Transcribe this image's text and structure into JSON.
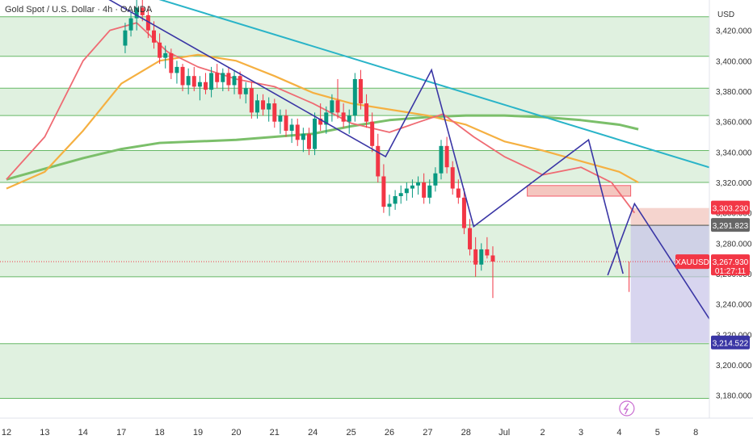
{
  "header": {
    "title": "Gold Spot / U.S. Dollar · 4h · OANDA",
    "currency": "USD"
  },
  "colors": {
    "bull": "#089981",
    "bear": "#f23645",
    "zone": "#d6ecd6",
    "zone_line": "#45a845",
    "trendline": "#2ab4c8",
    "zigzag": "#3a36a5",
    "ma_fast": "#ef6b73",
    "ma_mid": "#f5b041",
    "ma_slow": "#7bbf6a",
    "target_box": "#c7c3e8",
    "stop_box": "#f2c9c2"
  },
  "chart_data": {
    "type": "candlestick",
    "symbol": "XAUUSD",
    "ylim": [
      3165,
      3440
    ],
    "y_ticks": [
      3180,
      3200,
      3220,
      3240,
      3260,
      3280,
      3300,
      3320,
      3340,
      3360,
      3380,
      3400,
      3420
    ],
    "x_ticks": [
      "12",
      "13",
      "14",
      "17",
      "18",
      "19",
      "20",
      "21",
      "24",
      "25",
      "26",
      "27",
      "28",
      "Jul",
      "2",
      "3",
      "4",
      "5",
      "8"
    ],
    "price_tags": [
      {
        "label": "XAUUSD",
        "value": "3,267.930",
        "countdown": "01:27:11",
        "price": 3267.93,
        "color": "#f23645"
      },
      {
        "label": "",
        "value": "3,303.230",
        "price": 3303.23,
        "color": "#f23645"
      },
      {
        "label": "",
        "value": "3,291.823",
        "price": 3291.823,
        "color": "#666666"
      },
      {
        "label": "",
        "value": "3,214.522",
        "price": 3214.522,
        "color": "#3a36a5"
      }
    ],
    "zone_levels": [
      3429,
      3403,
      3382,
      3364,
      3341,
      3320,
      3292,
      3258,
      3214,
      3178
    ],
    "supply_box": {
      "from": 13.6,
      "to": 16.3,
      "high": 3318,
      "low": 3311
    },
    "projection": {
      "from": 16.3,
      "to": 18.8,
      "entry": 3291.8,
      "stop": 3303.2,
      "target": 3214.5,
      "path": [
        [
          15.7,
          3259
        ],
        [
          16.4,
          3306
        ],
        [
          18.8,
          3213
        ]
      ]
    },
    "trendline": [
      [
        3.4,
        3445
      ],
      [
        21.2,
        3308
      ]
    ],
    "zigzag": [
      [
        2.35,
        3445
      ],
      [
        9.9,
        3337
      ],
      [
        11.1,
        3394
      ],
      [
        12.2,
        3291
      ],
      [
        15.2,
        3348
      ],
      [
        16.1,
        3260
      ]
    ],
    "ma_fast": [
      [
        0,
        3322
      ],
      [
        1,
        3350
      ],
      [
        2,
        3400
      ],
      [
        2.7,
        3420
      ],
      [
        3.4,
        3425
      ],
      [
        4.2,
        3406
      ],
      [
        5,
        3396
      ],
      [
        6,
        3388
      ],
      [
        7,
        3383
      ],
      [
        8,
        3372
      ],
      [
        9,
        3359
      ],
      [
        10,
        3353
      ],
      [
        10.8,
        3360
      ],
      [
        11.4,
        3365
      ],
      [
        12.2,
        3350
      ],
      [
        13,
        3337
      ],
      [
        14,
        3325
      ],
      [
        15,
        3330
      ],
      [
        15.8,
        3320
      ],
      [
        16.4,
        3300
      ]
    ],
    "ma_mid": [
      [
        0,
        3316
      ],
      [
        1,
        3327
      ],
      [
        2,
        3354
      ],
      [
        3,
        3385
      ],
      [
        4,
        3400
      ],
      [
        5,
        3404
      ],
      [
        6,
        3400
      ],
      [
        7,
        3390
      ],
      [
        8,
        3379
      ],
      [
        9,
        3372
      ],
      [
        10,
        3368
      ],
      [
        11,
        3364
      ],
      [
        12,
        3358
      ],
      [
        13,
        3347
      ],
      [
        14,
        3341
      ],
      [
        15,
        3334
      ],
      [
        16,
        3327
      ],
      [
        16.5,
        3320
      ]
    ],
    "ma_slow": [
      [
        0,
        3322
      ],
      [
        1,
        3329
      ],
      [
        2,
        3336
      ],
      [
        3,
        3342
      ],
      [
        4,
        3346
      ],
      [
        5,
        3347
      ],
      [
        6,
        3348
      ],
      [
        7,
        3350
      ],
      [
        8,
        3352
      ],
      [
        9,
        3357
      ],
      [
        10,
        3361
      ],
      [
        11,
        3363
      ],
      [
        12,
        3364
      ],
      [
        13,
        3364
      ],
      [
        14,
        3363
      ],
      [
        15,
        3361
      ],
      [
        16,
        3358
      ],
      [
        16.5,
        3355
      ]
    ],
    "candles": [
      [
        3.1,
        3410,
        3425,
        3405,
        3420
      ],
      [
        3.25,
        3420,
        3432,
        3416,
        3428
      ],
      [
        3.4,
        3428,
        3440,
        3420,
        3435
      ],
      [
        3.55,
        3435,
        3442,
        3426,
        3430
      ],
      [
        3.7,
        3430,
        3436,
        3415,
        3420
      ],
      [
        3.85,
        3420,
        3426,
        3408,
        3412
      ],
      [
        4.0,
        3412,
        3418,
        3398,
        3402
      ],
      [
        4.15,
        3402,
        3410,
        3395,
        3405
      ],
      [
        4.3,
        3405,
        3408,
        3388,
        3392
      ],
      [
        4.45,
        3392,
        3400,
        3385,
        3396
      ],
      [
        4.6,
        3396,
        3398,
        3380,
        3384
      ],
      [
        4.75,
        3384,
        3395,
        3378,
        3390
      ],
      [
        4.9,
        3390,
        3396,
        3380,
        3383
      ],
      [
        5.05,
        3383,
        3390,
        3374,
        3386
      ],
      [
        5.2,
        3386,
        3392,
        3378,
        3381
      ],
      [
        5.35,
        3381,
        3396,
        3376,
        3392
      ],
      [
        5.5,
        3392,
        3398,
        3382,
        3386
      ],
      [
        5.65,
        3386,
        3395,
        3380,
        3392
      ],
      [
        5.8,
        3392,
        3396,
        3380,
        3384
      ],
      [
        5.95,
        3384,
        3394,
        3378,
        3390
      ],
      [
        6.1,
        3390,
        3393,
        3375,
        3378
      ],
      [
        6.25,
        3378,
        3386,
        3372,
        3382
      ],
      [
        6.4,
        3382,
        3386,
        3362,
        3366
      ],
      [
        6.55,
        3366,
        3378,
        3362,
        3374
      ],
      [
        6.7,
        3374,
        3378,
        3364,
        3368
      ],
      [
        6.85,
        3368,
        3376,
        3360,
        3372
      ],
      [
        7.0,
        3372,
        3375,
        3356,
        3360
      ],
      [
        7.15,
        3360,
        3368,
        3352,
        3364
      ],
      [
        7.3,
        3364,
        3368,
        3350,
        3354
      ],
      [
        7.45,
        3354,
        3362,
        3346,
        3358
      ],
      [
        7.6,
        3358,
        3362,
        3344,
        3348
      ],
      [
        7.75,
        3348,
        3356,
        3340,
        3352
      ],
      [
        7.9,
        3352,
        3356,
        3338,
        3342
      ],
      [
        8.05,
        3342,
        3366,
        3338,
        3362
      ],
      [
        8.2,
        3362,
        3372,
        3354,
        3358
      ],
      [
        8.35,
        3358,
        3370,
        3352,
        3366
      ],
      [
        8.5,
        3366,
        3378,
        3360,
        3374
      ],
      [
        8.65,
        3374,
        3388,
        3362,
        3366
      ],
      [
        8.8,
        3366,
        3372,
        3356,
        3360
      ],
      [
        8.95,
        3360,
        3368,
        3352,
        3364
      ],
      [
        9.1,
        3364,
        3392,
        3360,
        3388
      ],
      [
        9.25,
        3388,
        3394,
        3368,
        3372
      ],
      [
        9.4,
        3372,
        3378,
        3356,
        3360
      ],
      [
        9.55,
        3360,
        3366,
        3340,
        3344
      ],
      [
        9.7,
        3344,
        3352,
        3320,
        3324
      ],
      [
        9.85,
        3324,
        3332,
        3300,
        3304
      ],
      [
        10.0,
        3304,
        3312,
        3298,
        3306
      ],
      [
        10.15,
        3306,
        3315,
        3302,
        3311
      ],
      [
        10.3,
        3311,
        3318,
        3306,
        3313
      ],
      [
        10.45,
        3313,
        3320,
        3308,
        3316
      ],
      [
        10.6,
        3316,
        3322,
        3310,
        3318
      ],
      [
        10.75,
        3318,
        3324,
        3312,
        3320
      ],
      [
        10.9,
        3320,
        3326,
        3306,
        3310
      ],
      [
        11.05,
        3310,
        3322,
        3306,
        3318
      ],
      [
        11.2,
        3318,
        3330,
        3314,
        3326
      ],
      [
        11.35,
        3326,
        3348,
        3322,
        3344
      ],
      [
        11.5,
        3344,
        3350,
        3326,
        3330
      ],
      [
        11.65,
        3330,
        3334,
        3312,
        3316
      ],
      [
        11.8,
        3316,
        3322,
        3306,
        3310
      ],
      [
        11.95,
        3310,
        3316,
        3286,
        3290
      ],
      [
        12.1,
        3290,
        3296,
        3272,
        3276
      ],
      [
        12.25,
        3276,
        3284,
        3258,
        3266
      ],
      [
        12.4,
        3266,
        3280,
        3262,
        3276
      ],
      [
        12.55,
        3276,
        3284,
        3270,
        3272
      ],
      [
        12.7,
        3272,
        3278,
        3244,
        3268
      ]
    ]
  }
}
